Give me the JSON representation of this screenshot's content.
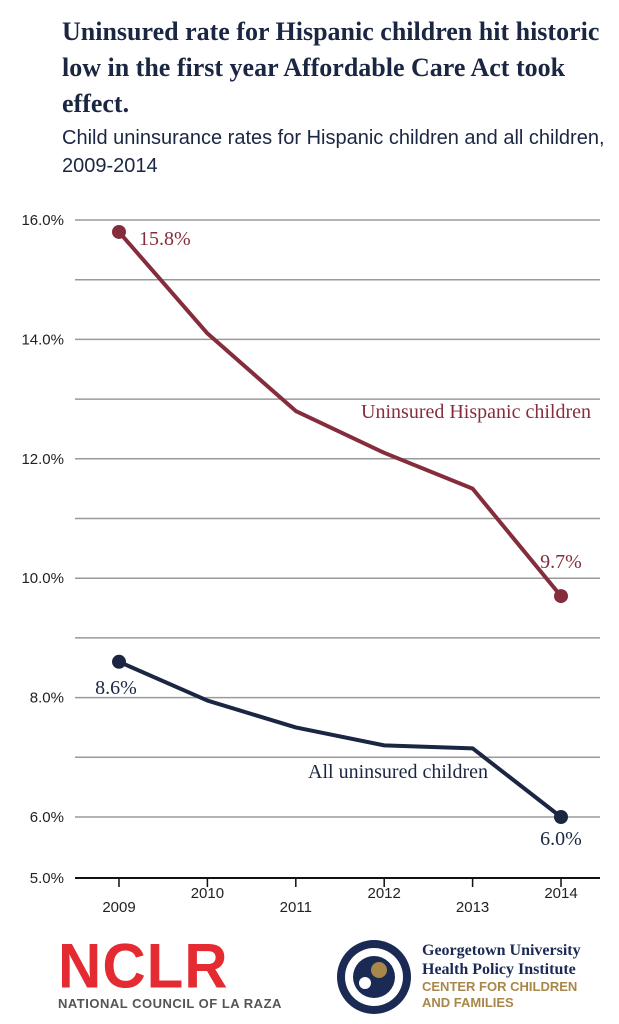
{
  "header": {
    "title": "Uninsured rate for Hispanic children hit historic low in the first year Affordable Care Act took effect.",
    "subtitle": "Child uninsurance rates for Hispanic children and all children, 2009-2014"
  },
  "chart_data": {
    "type": "line",
    "x": [
      "2009",
      "2010",
      "2011",
      "2012",
      "2013",
      "2014"
    ],
    "y_ticks": [
      "16.0%",
      "14.0%",
      "12.0%",
      "10.0%",
      "8.0%",
      "6.0%",
      "5.0%"
    ],
    "ylim": [
      5.0,
      16.0
    ],
    "grid": true,
    "series": [
      {
        "name": "Uninsured Hispanic children",
        "values": [
          15.8,
          14.1,
          12.8,
          12.1,
          11.5,
          9.7
        ],
        "color": "#862d3d",
        "labels": {
          "start": "15.8%",
          "end": "9.7%"
        }
      },
      {
        "name": "All uninsured children",
        "values": [
          8.6,
          7.95,
          7.5,
          7.2,
          7.15,
          6.0
        ],
        "color": "#1b2642",
        "labels": {
          "start": "8.6%",
          "end": "6.0%"
        }
      }
    ]
  },
  "logos": {
    "nclr_mark": "NCLR",
    "nclr_sub": "NATIONAL COUNCIL OF LA RAZA",
    "gu_line1": "Georgetown University",
    "gu_line2": "Health Policy Institute",
    "gu_line3": "CENTER FOR CHILDREN",
    "gu_line4": "AND FAMILIES",
    "colors": {
      "nclr": "#e42b31",
      "gu_navy": "#1b2a55",
      "gu_gold": "#a9874a"
    }
  }
}
